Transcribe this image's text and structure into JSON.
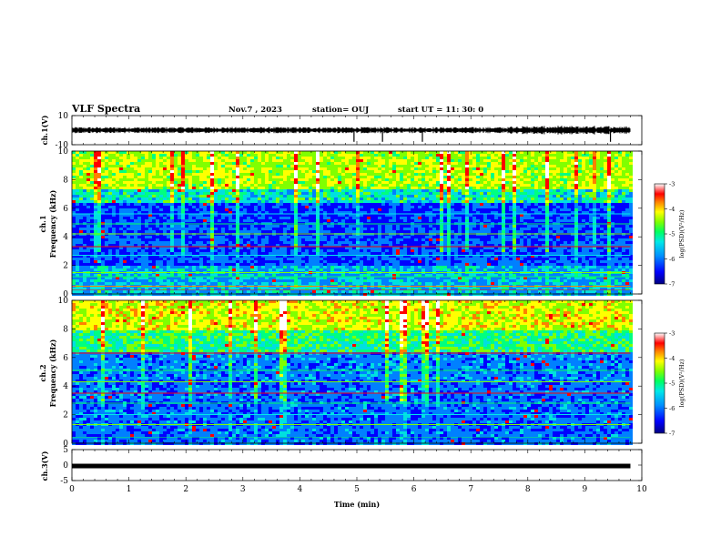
{
  "header": {
    "title": "VLF Spectra",
    "date": "Nov.7 , 2023",
    "station": "station= OUJ",
    "start": "start UT = 11: 30: 0"
  },
  "chart_data": [
    {
      "type": "line",
      "name": "ch1-waveform",
      "ylabel": "ch.1(V)",
      "ylim": [
        -10,
        10
      ],
      "yticks": [
        "10",
        "-10"
      ],
      "baseline": 0,
      "spikes_min": [
        4.95,
        5.45,
        6.15,
        9.45
      ]
    },
    {
      "type": "heatmap",
      "name": "ch1-spectrogram",
      "ylabel_lines": [
        "ch.1",
        "Frequency (kHz)"
      ],
      "ylim": [
        0,
        10
      ],
      "yticks": [
        "0",
        "2",
        "4",
        "6",
        "8",
        "10"
      ],
      "colorbar": {
        "label": "log(PSD)(V²/Hz)",
        "ticks": [
          "-3",
          "-4",
          "-5",
          "-6",
          "-7"
        ],
        "range": [
          -7,
          -3
        ]
      }
    },
    {
      "type": "heatmap",
      "name": "ch2-spectrogram",
      "ylabel_lines": [
        "ch.2",
        "Frequency (kHz)"
      ],
      "ylim": [
        0,
        10
      ],
      "yticks": [
        "0",
        "2",
        "4",
        "6",
        "8",
        "10"
      ],
      "colorbar": {
        "label": "log(PSD)(V²/Hz)",
        "ticks": [
          "-3",
          "-4",
          "-5",
          "-6",
          "-7"
        ],
        "range": [
          -7,
          -3
        ]
      }
    },
    {
      "type": "line",
      "name": "ch3-waveform",
      "ylabel": "ch.3(V)",
      "ylim": [
        -5,
        5
      ],
      "yticks": [
        "5",
        "0",
        "-5"
      ],
      "baseline": -0.3
    }
  ],
  "xaxis": {
    "label": "Time (min)",
    "range": [
      0,
      10
    ],
    "ticks": [
      "0",
      "1",
      "2",
      "3",
      "4",
      "5",
      "6",
      "7",
      "8",
      "9",
      "10"
    ],
    "data_end": 9.8
  },
  "colors": {
    "colormap": [
      "#000080",
      "#0000ff",
      "#0080ff",
      "#00e0e0",
      "#00ff80",
      "#80ff00",
      "#ffff00",
      "#ff8000",
      "#ff0000",
      "#ffffff"
    ],
    "trace": "#000000"
  }
}
